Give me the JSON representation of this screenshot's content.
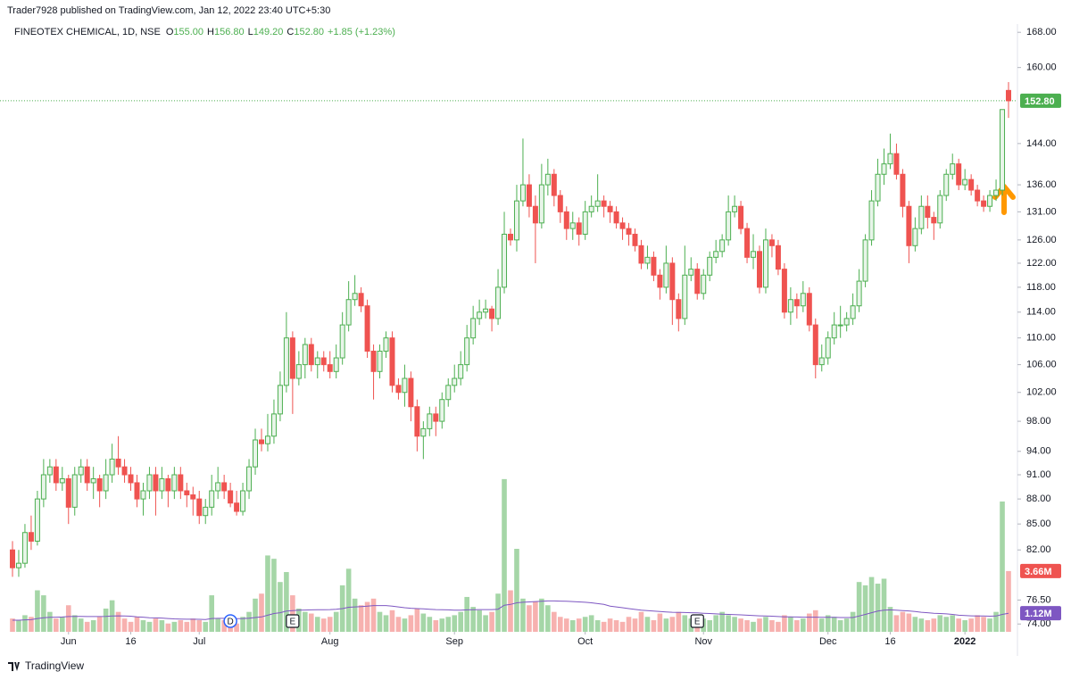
{
  "header": "Trader7928 published on TradingView.com, Jan 12, 2022 23:40 UTC+5:30",
  "footer": "TradingView",
  "chart_data": {
    "type": "candlestick",
    "symbol": "FINEOTEX CHEMICAL, 1D, NSE",
    "ohlc_legend": [
      {
        "key": "O",
        "value": 155,
        "label": "155.00"
      },
      {
        "key": "H",
        "value": 156.8,
        "label": "156.80"
      },
      {
        "key": "L",
        "value": 149.2,
        "label": "149.20"
      },
      {
        "key": "C",
        "value": 152.8,
        "label": "152.80"
      }
    ],
    "change_label": "+1.85 (+1.23%)",
    "open": [
      82,
      80,
      80.5,
      84,
      83,
      88,
      91,
      92,
      90,
      90.5,
      87,
      91,
      92,
      90,
      90.5,
      89,
      91,
      93,
      92,
      91,
      90,
      88,
      89,
      91,
      89,
      90.5,
      89,
      91,
      89,
      88.5,
      88,
      86,
      87,
      89,
      90,
      89,
      87.5,
      86.5,
      89,
      92,
      95.5,
      95,
      96,
      99,
      103,
      110,
      104,
      106,
      109,
      106,
      107,
      106,
      105,
      107,
      112,
      116,
      117,
      115,
      108,
      105,
      108,
      110,
      103,
      102,
      104,
      100,
      96,
      97,
      99,
      98,
      101,
      103,
      104,
      106,
      110,
      113,
      114,
      114.5,
      113,
      118,
      127,
      126,
      133,
      136,
      132,
      129,
      136,
      138,
      134,
      131,
      128,
      129,
      127,
      131,
      132,
      133,
      132,
      131,
      129,
      128,
      127,
      125,
      122,
      123,
      120,
      118,
      122,
      116,
      113,
      120,
      121,
      117,
      120,
      123,
      124,
      126,
      131,
      132,
      128,
      123,
      124,
      118,
      126,
      125,
      121,
      114,
      116,
      115,
      117,
      112,
      106,
      107,
      110,
      112,
      112,
      113,
      115,
      119,
      126,
      133,
      138,
      140,
      142,
      138,
      132,
      125,
      128,
      132,
      130,
      129,
      134,
      138,
      140,
      136,
      137,
      135,
      133,
      132,
      134,
      135,
      155
    ],
    "high": [
      83,
      82,
      85,
      86,
      89,
      93,
      93,
      93,
      92,
      91,
      92,
      93,
      93,
      92,
      91,
      93,
      95,
      96,
      93,
      92,
      91,
      90,
      92,
      92,
      92,
      91,
      92,
      92,
      90,
      89.5,
      89,
      88,
      91,
      92,
      91,
      90,
      89,
      90,
      93,
      97,
      97,
      99,
      101,
      105,
      114,
      111,
      108,
      110,
      110,
      108,
      108,
      108,
      109,
      114,
      119,
      120,
      118,
      116,
      109,
      109,
      111,
      111,
      104,
      106,
      105,
      101,
      98,
      100,
      100,
      102,
      104,
      106,
      108,
      112,
      115,
      116,
      116,
      115,
      121,
      131,
      128,
      136,
      145,
      138,
      134,
      140,
      141,
      139,
      135,
      132,
      131,
      130,
      133,
      134,
      138,
      134,
      133,
      132,
      130,
      129,
      128,
      126,
      125,
      124,
      121,
      125,
      123,
      117,
      125,
      123,
      122,
      121,
      124,
      126,
      127,
      134,
      134,
      133,
      129,
      127,
      125,
      128,
      127,
      126,
      122,
      118,
      117,
      119,
      118,
      113,
      109,
      111,
      114,
      115,
      114,
      117,
      121,
      127,
      135,
      141,
      143,
      146,
      144,
      139,
      133,
      130,
      134,
      134,
      131,
      135,
      139,
      142,
      141,
      139,
      138,
      136,
      134,
      135,
      137,
      151,
      156.8
    ],
    "low": [
      79,
      79,
      80,
      82,
      82.5,
      87,
      90,
      89,
      89,
      85,
      86,
      90,
      89,
      88,
      87,
      88,
      90,
      91,
      90,
      89,
      87,
      86,
      88,
      86,
      88,
      87,
      88,
      88,
      87,
      86,
      85,
      85,
      86,
      88,
      88,
      87,
      86,
      86,
      88,
      91,
      94,
      94,
      95,
      98,
      102,
      99,
      103,
      104,
      105,
      104,
      105,
      104,
      104,
      106,
      111,
      115,
      114,
      107,
      101,
      104,
      107,
      102,
      101,
      100,
      98,
      94,
      93,
      96,
      96,
      97,
      100,
      102,
      103,
      105,
      109,
      112,
      113,
      111,
      112,
      117,
      125,
      124,
      132,
      130,
      122,
      128,
      134,
      132,
      129,
      126,
      126,
      125,
      126,
      130,
      131,
      130,
      129,
      128,
      126,
      125,
      124,
      121,
      121,
      119,
      116,
      117,
      112,
      111,
      112,
      119,
      116,
      116,
      119,
      122,
      123,
      125,
      130,
      127,
      122,
      121,
      117,
      117,
      123,
      120,
      113,
      112,
      113,
      114,
      111,
      104,
      105,
      106,
      109,
      110,
      111,
      112,
      114,
      118,
      125,
      132,
      136,
      139,
      137,
      130,
      122,
      124,
      127,
      128,
      126,
      128,
      133,
      137,
      135,
      135,
      134,
      132,
      131,
      131,
      133,
      134,
      149.2
    ],
    "close": [
      80,
      80.5,
      84,
      83,
      88,
      91,
      92,
      90,
      90.5,
      87,
      91,
      92,
      90,
      90.5,
      89,
      91,
      93,
      92,
      91,
      90,
      88,
      89,
      91,
      89,
      90.5,
      89,
      91,
      89,
      88.5,
      88,
      86,
      87,
      89,
      90,
      89,
      87.5,
      86.5,
      89,
      92,
      95.5,
      95,
      96,
      99,
      103,
      110,
      104,
      106,
      109,
      106,
      107,
      106,
      105,
      107,
      112,
      116,
      117,
      115,
      108,
      105,
      108,
      110,
      103,
      102,
      104,
      100,
      96,
      97,
      99,
      98,
      101,
      103,
      104,
      106,
      110,
      113,
      114,
      114.5,
      113,
      118,
      127,
      126,
      133,
      136,
      132,
      129,
      136,
      138,
      134,
      131,
      128,
      129,
      127,
      131,
      132,
      133,
      132,
      131,
      129,
      128,
      127,
      125,
      122,
      123,
      120,
      118,
      122,
      116,
      113,
      120,
      121,
      117,
      120,
      123,
      124,
      126,
      131,
      132,
      128,
      123,
      124,
      118,
      126,
      125,
      121,
      114,
      116,
      115,
      117,
      112,
      106,
      107,
      110,
      112,
      112,
      113,
      115,
      119,
      126,
      133,
      138,
      140,
      142,
      138,
      132,
      125,
      128,
      132,
      130,
      129,
      134,
      138,
      140,
      136,
      137,
      135,
      133,
      132,
      134,
      135,
      150.95,
      152.8
    ],
    "volume": [
      0.8,
      0.7,
      1.0,
      0.9,
      2.5,
      2.2,
      1.2,
      0.8,
      0.9,
      1.6,
      1.0,
      0.8,
      0.6,
      0.7,
      0.9,
      1.4,
      1.9,
      1.2,
      0.8,
      0.6,
      0.9,
      0.7,
      0.6,
      0.8,
      0.7,
      0.5,
      0.6,
      0.7,
      0.6,
      0.8,
      0.7,
      0.6,
      2.2,
      0.8,
      0.7,
      0.6,
      0.5,
      0.9,
      1.2,
      2.0,
      2.3,
      4.6,
      4.4,
      3.0,
      3.6,
      2.2,
      1.4,
      1.2,
      1.1,
      0.9,
      0.8,
      0.9,
      1.2,
      2.8,
      3.8,
      2.0,
      1.6,
      1.8,
      2.0,
      1.2,
      1.0,
      1.3,
      0.9,
      0.8,
      1.0,
      1.4,
      1.1,
      0.9,
      0.7,
      0.8,
      0.9,
      1.0,
      1.2,
      2.1,
      1.5,
      1.3,
      1.0,
      1.2,
      2.3,
      9.2,
      2.5,
      5.0,
      2.0,
      1.6,
      1.8,
      2.0,
      1.6,
      1.2,
      0.9,
      0.8,
      0.7,
      0.8,
      0.9,
      1.0,
      0.7,
      0.6,
      0.8,
      0.7,
      0.6,
      0.9,
      0.8,
      1.2,
      0.9,
      0.7,
      1.1,
      0.8,
      0.9,
      1.2,
      1.0,
      0.8,
      0.9,
      0.8,
      0.7,
      1.0,
      1.2,
      1.0,
      0.9,
      0.8,
      0.7,
      0.6,
      0.8,
      0.9,
      0.7,
      0.6,
      1.0,
      0.9,
      0.7,
      0.8,
      1.1,
      1.3,
      0.8,
      1.0,
      0.9,
      0.7,
      0.8,
      1.2,
      3.0,
      2.8,
      3.3,
      2.9,
      3.2,
      1.5,
      1.0,
      1.2,
      1.1,
      0.9,
      0.8,
      0.7,
      0.8,
      1.0,
      0.9,
      1.0,
      0.8,
      0.7,
      0.8,
      1.0,
      0.9,
      0.8,
      1.2,
      7.85,
      3.66
    ],
    "volume_ma": [
      0.7,
      0.7,
      0.72,
      0.73,
      0.8,
      0.85,
      0.87,
      0.88,
      0.89,
      0.92,
      0.93,
      0.93,
      0.92,
      0.92,
      0.92,
      0.93,
      0.95,
      0.96,
      0.95,
      0.94,
      0.9,
      0.88,
      0.85,
      0.84,
      0.83,
      0.8,
      0.78,
      0.77,
      0.76,
      0.76,
      0.75,
      0.74,
      0.8,
      0.81,
      0.81,
      0.8,
      0.79,
      0.8,
      0.82,
      0.86,
      0.9,
      1.0,
      1.1,
      1.15,
      1.25,
      1.28,
      1.3,
      1.31,
      1.32,
      1.33,
      1.33,
      1.34,
      1.36,
      1.4,
      1.48,
      1.5,
      1.52,
      1.55,
      1.58,
      1.58,
      1.58,
      1.55,
      1.5,
      1.45,
      1.42,
      1.4,
      1.38,
      1.36,
      1.34,
      1.33,
      1.32,
      1.3,
      1.3,
      1.32,
      1.33,
      1.34,
      1.34,
      1.34,
      1.36,
      1.6,
      1.65,
      1.75,
      1.78,
      1.8,
      1.82,
      1.84,
      1.86,
      1.86,
      1.85,
      1.84,
      1.82,
      1.8,
      1.78,
      1.75,
      1.7,
      1.65,
      1.55,
      1.5,
      1.45,
      1.4,
      1.35,
      1.3,
      1.28,
      1.25,
      1.22,
      1.2,
      1.18,
      1.17,
      1.16,
      1.15,
      1.14,
      1.12,
      1.1,
      1.08,
      1.06,
      1.05,
      1.04,
      1.02,
      1.0,
      0.98,
      0.96,
      0.95,
      0.94,
      0.92,
      0.9,
      0.9,
      0.89,
      0.88,
      0.88,
      0.88,
      0.87,
      0.87,
      0.87,
      0.86,
      0.86,
      0.86,
      0.95,
      1.05,
      1.15,
      1.25,
      1.3,
      1.32,
      1.3,
      1.28,
      1.26,
      1.22,
      1.18,
      1.15,
      1.12,
      1.1,
      1.08,
      1.05,
      1.0,
      0.98,
      0.96,
      0.95,
      0.95,
      0.94,
      0.95,
      1.05,
      1.12
    ],
    "ylim": [
      70.8,
      171.4
    ],
    "log_scale": true,
    "yticks": [
      {
        "value": 168,
        "label": "168.00"
      },
      {
        "value": 160,
        "label": "160.00"
      },
      {
        "value": 144,
        "label": "144.00"
      },
      {
        "value": 136,
        "label": "136.00"
      },
      {
        "value": 131,
        "label": "131.00"
      },
      {
        "value": 126,
        "label": "126.00"
      },
      {
        "value": 122,
        "label": "122.00"
      },
      {
        "value": 118,
        "label": "118.00"
      },
      {
        "value": 114,
        "label": "114.00"
      },
      {
        "value": 110,
        "label": "110.00"
      },
      {
        "value": 106,
        "label": "106.00"
      },
      {
        "value": 102,
        "label": "102.00"
      },
      {
        "value": 98,
        "label": "98.00"
      },
      {
        "value": 94,
        "label": "94.00"
      },
      {
        "value": 91,
        "label": "91.00"
      },
      {
        "value": 88,
        "label": "88.00"
      },
      {
        "value": 85,
        "label": "85.00"
      },
      {
        "value": 82,
        "label": "82.00"
      },
      {
        "value": 76.5,
        "label": "76.50"
      },
      {
        "value": 74,
        "label": "74.00"
      }
    ],
    "xticks": [
      {
        "value": 9,
        "label": "Jun"
      },
      {
        "value": 19,
        "label": "16"
      },
      {
        "value": 30,
        "label": "Jul"
      },
      {
        "value": 51,
        "label": "Aug"
      },
      {
        "value": 71,
        "label": "Sep"
      },
      {
        "value": 92,
        "label": "Oct"
      },
      {
        "value": 111,
        "label": "Nov"
      },
      {
        "value": 131,
        "label": "Dec"
      },
      {
        "value": 141,
        "label": "16"
      },
      {
        "value": 153,
        "label": "2022"
      }
    ],
    "badges": {
      "price": "152.80",
      "volume": "3.66M",
      "volume_ma": "1.12M"
    },
    "events": [
      {
        "label": "D",
        "index": 35
      },
      {
        "label": "E",
        "index": 45
      },
      {
        "label": "E",
        "index": 110
      }
    ],
    "colors": {
      "up": "#4caf50",
      "down": "#ef5350",
      "up_fill": "#e8f5e9",
      "volume_up": "#a5d6a7",
      "volume_down": "#f7b1af",
      "volume_ma": "#7e57c2",
      "event_d": "#2962ff"
    }
  }
}
